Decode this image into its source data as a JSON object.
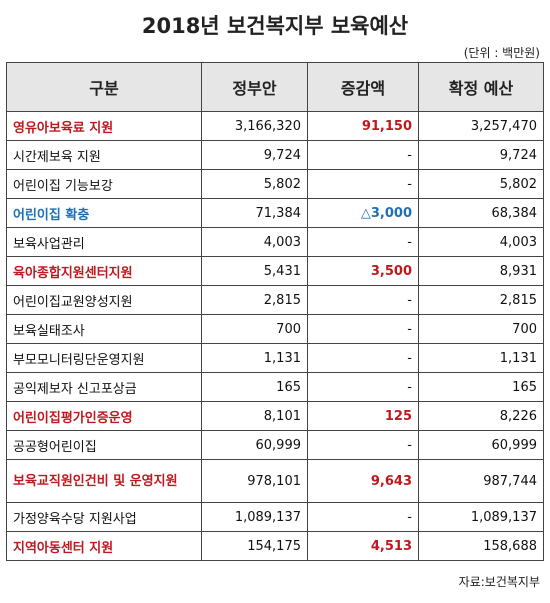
{
  "title": "2018년 보건복지부 보육예산",
  "unit": "(단위 : 백만원)",
  "source": "자료:보건복지부",
  "colors": {
    "highlight_red": "#c0181f",
    "highlight_blue": "#1f6fb5",
    "header_bg": "#e6e6e6"
  },
  "columns": [
    "구분",
    "정부안",
    "증감액",
    "확정 예산"
  ],
  "rows": [
    {
      "name": "영유아보육료 지원",
      "gov": "3,166,320",
      "change": "91,150",
      "final": "3,257,470",
      "style": "red"
    },
    {
      "name": "시간제보육 지원",
      "gov": "9,724",
      "change": "-",
      "final": "9,724",
      "style": ""
    },
    {
      "name": "어린이집 기능보강",
      "gov": "5,802",
      "change": "-",
      "final": "5,802",
      "style": ""
    },
    {
      "name": "어린이집 확충",
      "gov": "71,384",
      "change": "△3,000",
      "final": "68,384",
      "style": "blue"
    },
    {
      "name": "보육사업관리",
      "gov": "4,003",
      "change": "-",
      "final": "4,003",
      "style": ""
    },
    {
      "name": "육아종합지원센터지원",
      "gov": "5,431",
      "change": "3,500",
      "final": "8,931",
      "style": "red"
    },
    {
      "name": "어린이집교원양성지원",
      "gov": "2,815",
      "change": "-",
      "final": "2,815",
      "style": ""
    },
    {
      "name": "보육실태조사",
      "gov": "700",
      "change": "-",
      "final": "700",
      "style": ""
    },
    {
      "name": "부모모니터링단운영지원",
      "gov": "1,131",
      "change": "-",
      "final": "1,131",
      "style": ""
    },
    {
      "name": "공익제보자 신고포상금",
      "gov": "165",
      "change": "-",
      "final": "165",
      "style": ""
    },
    {
      "name": "어린이집평가인증운영",
      "gov": "8,101",
      "change": "125",
      "final": "8,226",
      "style": "red"
    },
    {
      "name": "공공형어린이집",
      "gov": "60,999",
      "change": "-",
      "final": "60,999",
      "style": ""
    },
    {
      "name": "보육교직원인건비 및 운영지원",
      "gov": "978,101",
      "change": "9,643",
      "final": "987,744",
      "style": "red"
    },
    {
      "name": "가정양육수당 지원사업",
      "gov": "1,089,137",
      "change": "-",
      "final": "1,089,137",
      "style": ""
    },
    {
      "name": "지역아동센터 지원",
      "gov": "154,175",
      "change": "4,513",
      "final": "158,688",
      "style": "red"
    }
  ]
}
